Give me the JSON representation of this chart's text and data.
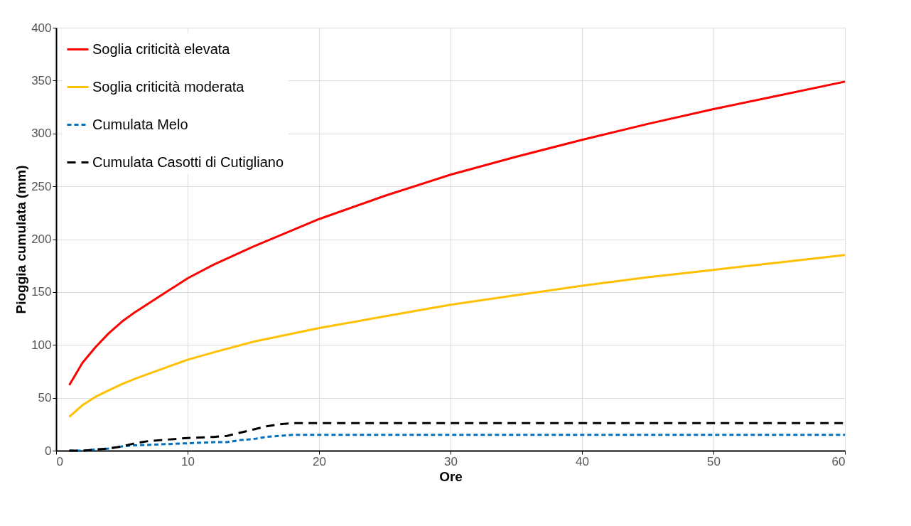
{
  "chart_data": {
    "type": "line",
    "xlabel": "Ore",
    "ylabel": "Pioggia cumulata (mm)",
    "xlim": [
      0,
      60
    ],
    "xticks": [
      0,
      10,
      20,
      30,
      40,
      50,
      60
    ],
    "ylim": [
      0,
      400
    ],
    "yticks": [
      0,
      50,
      100,
      150,
      200,
      250,
      300,
      350,
      400
    ],
    "grid": true,
    "legend": "top left",
    "marker": "none",
    "series": [
      {
        "name": "Soglia criticità elevata",
        "color": "#ff0000",
        "line_style": "solid",
        "x": [
          1,
          2,
          3,
          4,
          5,
          6,
          8,
          10,
          12,
          15,
          20,
          25,
          30,
          35,
          40,
          45,
          50,
          55,
          60
        ],
        "values": [
          62,
          83,
          98,
          111,
          122,
          131,
          147,
          163,
          176,
          193,
          219,
          241,
          261,
          278,
          294,
          309,
          323,
          336,
          349
        ]
      },
      {
        "name": "Soglia criticità moderata",
        "color": "#ffc000",
        "line_style": "solid",
        "x": [
          1,
          2,
          3,
          4,
          5,
          6,
          8,
          10,
          12,
          15,
          20,
          25,
          30,
          35,
          40,
          45,
          50,
          55,
          60
        ],
        "values": [
          32,
          43,
          51,
          57,
          63,
          68,
          77,
          86,
          93,
          103,
          116,
          127,
          138,
          147,
          156,
          164,
          171,
          178,
          185
        ]
      },
      {
        "name": "Cumulata Melo",
        "color": "#0070c0",
        "line_style": "dashed",
        "x": [
          1,
          2,
          3,
          4,
          5,
          6,
          8,
          10,
          12,
          13,
          14,
          15,
          16,
          17,
          18,
          20,
          60
        ],
        "values": [
          0,
          0,
          1,
          2,
          4,
          5,
          6,
          7,
          8,
          8,
          10,
          11,
          13,
          14,
          15,
          15,
          15
        ]
      },
      {
        "name": "Cumulata Casotti di Cutigliano",
        "color": "#000000",
        "line_style": "dashed",
        "x": [
          1,
          2,
          3,
          4,
          5,
          6,
          7,
          8,
          10,
          12,
          13,
          14,
          15,
          16,
          17,
          18,
          20,
          60
        ],
        "values": [
          0,
          0,
          1,
          2,
          4,
          7,
          9,
          10,
          12,
          13,
          14,
          17,
          20,
          23,
          25,
          26,
          26,
          26
        ]
      }
    ]
  }
}
